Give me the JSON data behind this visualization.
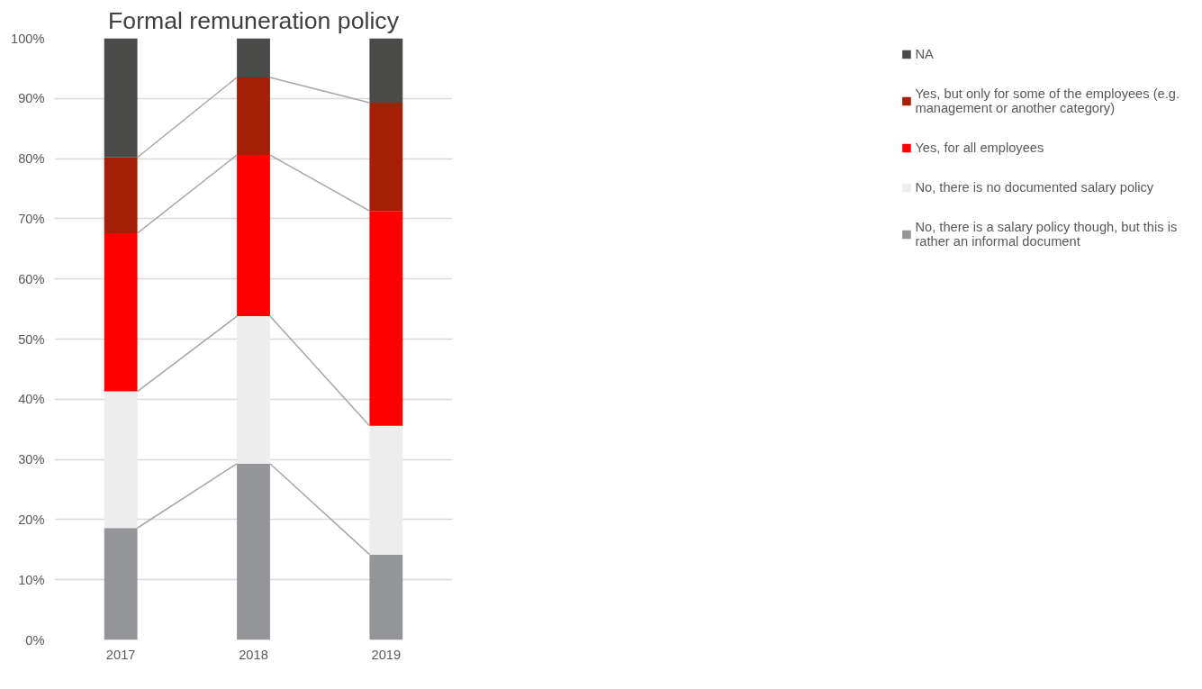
{
  "chart_data": {
    "type": "bar",
    "stacked": true,
    "title": "Formal remuneration policy",
    "categories": [
      "2017",
      "2018",
      "2019"
    ],
    "series": [
      {
        "name": "No, there is a salary policy though, but this is rather an informal document",
        "color": "#939598",
        "values": [
          18.6,
          29.3,
          14.2
        ]
      },
      {
        "name": "No, there is no documented salary policy",
        "color": "#ededed",
        "values": [
          22.7,
          24.5,
          21.4
        ]
      },
      {
        "name": "Yes, for all employees",
        "color": "#ff0000",
        "values": [
          26.3,
          26.8,
          35.7
        ]
      },
      {
        "name": "Yes, but only for some of the employees (e.g. management or another category)",
        "color": "#a51e06",
        "values": [
          12.6,
          12.9,
          18.0
        ]
      },
      {
        "name": "NA",
        "color": "#4a4a48",
        "values": [
          19.8,
          6.5,
          10.7
        ]
      }
    ],
    "ylim": [
      0,
      100
    ],
    "yticks": [
      {
        "value": 0,
        "label": "0%"
      },
      {
        "value": 10,
        "label": "10%"
      },
      {
        "value": 20,
        "label": "20%"
      },
      {
        "value": 30,
        "label": "30%"
      },
      {
        "value": 40,
        "label": "40%"
      },
      {
        "value": 50,
        "label": "50%"
      },
      {
        "value": 60,
        "label": "60%"
      },
      {
        "value": 70,
        "label": "70%"
      },
      {
        "value": 80,
        "label": "80%"
      },
      {
        "value": 90,
        "label": "90%"
      },
      {
        "value": 100,
        "label": "100%"
      }
    ],
    "grid": "y",
    "legend": "right"
  }
}
